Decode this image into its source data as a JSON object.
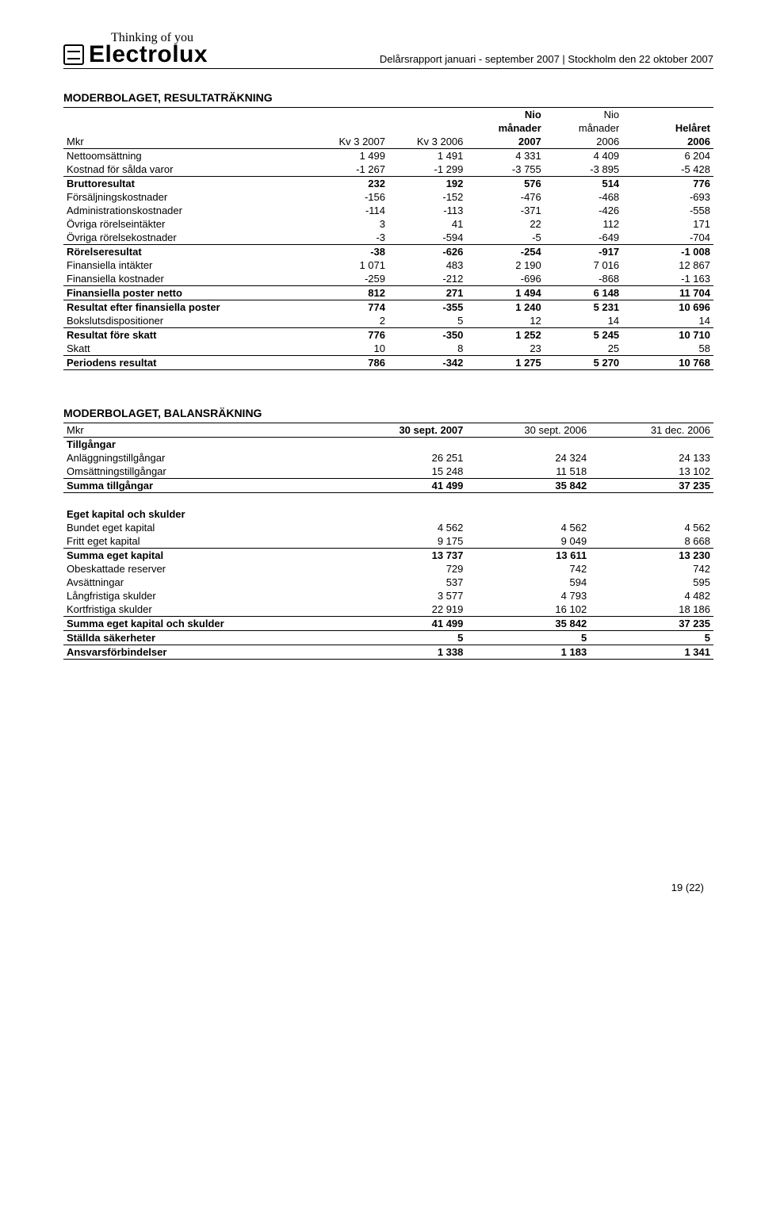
{
  "header": {
    "tagline": "Thinking of you",
    "brand": "Electrolux",
    "report_line": "Delårsrapport januari - september 2007 | Stockholm den 22 oktober 2007"
  },
  "table1": {
    "title": "MODERBOLAGET, RESULTATRÄKNING",
    "columns": {
      "unit": "Mkr",
      "c1_l1": "",
      "c1_l2": "Kv 3 2007",
      "c2_l1": "",
      "c2_l2": "Kv 3 2006",
      "c3_l1": "Nio",
      "c3_l2": "månader",
      "c3_l3": "2007",
      "c4_l1": "Nio",
      "c4_l2": "månader",
      "c4_l3": "2006",
      "c5_l1": "",
      "c5_l2": "Helåret",
      "c5_l3": "2006"
    },
    "rows": [
      {
        "label": "Nettoomsättning",
        "v": [
          "1 499",
          "1 491",
          "4 331",
          "4 409",
          "6 204"
        ],
        "cls": ""
      },
      {
        "label": "Kostnad för sålda varor",
        "v": [
          "-1 267",
          "-1 299",
          "-3 755",
          "-3 895",
          "-5 428"
        ],
        "cls": "rule-bot"
      },
      {
        "label": "Bruttoresultat",
        "v": [
          "232",
          "192",
          "576",
          "514",
          "776"
        ],
        "cls": "bold"
      },
      {
        "label": "Försäljningskostnader",
        "v": [
          "-156",
          "-152",
          "-476",
          "-468",
          "-693"
        ],
        "cls": ""
      },
      {
        "label": "Administrationskostnader",
        "v": [
          "-114",
          "-113",
          "-371",
          "-426",
          "-558"
        ],
        "cls": ""
      },
      {
        "label": "Övriga rörelseintäkter",
        "v": [
          "3",
          "41",
          "22",
          "112",
          "171"
        ],
        "cls": ""
      },
      {
        "label": "Övriga rörelsekostnader",
        "v": [
          "-3",
          "-594",
          "-5",
          "-649",
          "-704"
        ],
        "cls": "rule-bot"
      },
      {
        "label": "Rörelseresultat",
        "v": [
          "-38",
          "-626",
          "-254",
          "-917",
          "-1 008"
        ],
        "cls": "bold"
      },
      {
        "label": "Finansiella intäkter",
        "v": [
          "1 071",
          "483",
          "2 190",
          "7 016",
          "12 867"
        ],
        "cls": ""
      },
      {
        "label": "Finansiella kostnader",
        "v": [
          "-259",
          "-212",
          "-696",
          "-868",
          "-1 163"
        ],
        "cls": "rule-bot"
      },
      {
        "label": "Finansiella poster netto",
        "v": [
          "812",
          "271",
          "1 494",
          "6 148",
          "11 704"
        ],
        "cls": "bold rule-bot"
      },
      {
        "label": "Resultat efter finansiella poster",
        "v": [
          "774",
          "-355",
          "1 240",
          "5 231",
          "10 696"
        ],
        "cls": "bold"
      },
      {
        "label": "Bokslutsdispositioner",
        "v": [
          "2",
          "5",
          "12",
          "14",
          "14"
        ],
        "cls": "rule-bot"
      },
      {
        "label": "Resultat före skatt",
        "v": [
          "776",
          "-350",
          "1 252",
          "5 245",
          "10 710"
        ],
        "cls": "bold"
      },
      {
        "label": "Skatt",
        "v": [
          "10",
          "8",
          "23",
          "25",
          "58"
        ],
        "cls": "rule-bot"
      },
      {
        "label": "Periodens resultat",
        "v": [
          "786",
          "-342",
          "1 275",
          "5 270",
          "10 768"
        ],
        "cls": "bold rule-heavy"
      }
    ]
  },
  "table2": {
    "title": "MODERBOLAGET, BALANSRÄKNING",
    "columns": {
      "unit": "Mkr",
      "c1": "30 sept. 2007",
      "c2": "30 sept. 2006",
      "c3": "31 dec. 2006"
    },
    "groups": [
      {
        "heading": "Tillgångar",
        "rows": [
          {
            "label": "Anläggningstillgångar",
            "v": [
              "26 251",
              "24 324",
              "24 133"
            ],
            "cls": ""
          },
          {
            "label": "Omsättningstillgångar",
            "v": [
              "15 248",
              "11 518",
              "13 102"
            ],
            "cls": "rule-bot"
          },
          {
            "label": "Summa tillgångar",
            "v": [
              "41 499",
              "35 842",
              "37 235"
            ],
            "cls": "bold rule-heavy"
          }
        ]
      },
      {
        "heading": "Eget kapital och skulder",
        "rows": [
          {
            "label": "Bundet eget kapital",
            "v": [
              "4 562",
              "4 562",
              "4 562"
            ],
            "cls": ""
          },
          {
            "label": "Fritt eget kapital",
            "v": [
              "9 175",
              "9 049",
              "8 668"
            ],
            "cls": "rule-bot"
          },
          {
            "label": "Summa eget kapital",
            "v": [
              "13 737",
              "13 611",
              "13 230"
            ],
            "cls": "bold"
          },
          {
            "label": "Obeskattade reserver",
            "v": [
              "729",
              "742",
              "742"
            ],
            "cls": ""
          },
          {
            "label": "Avsättningar",
            "v": [
              "537",
              "594",
              "595"
            ],
            "cls": ""
          },
          {
            "label": "Långfristiga skulder",
            "v": [
              "3 577",
              "4 793",
              "4 482"
            ],
            "cls": ""
          },
          {
            "label": "Kortfristiga skulder",
            "v": [
              "22 919",
              "16 102",
              "18 186"
            ],
            "cls": "rule-bot"
          },
          {
            "label": "Summa eget kapital och skulder",
            "v": [
              "41 499",
              "35 842",
              "37 235"
            ],
            "cls": "bold rule-bot"
          },
          {
            "label": "Ställda säkerheter",
            "v": [
              "5",
              "5",
              "5"
            ],
            "cls": "bold rule-bot"
          },
          {
            "label": "Ansvarsförbindelser",
            "v": [
              "1 338",
              "1 183",
              "1 341"
            ],
            "cls": "bold rule-heavy"
          }
        ]
      }
    ]
  },
  "footer": {
    "page": "19 (22)"
  }
}
